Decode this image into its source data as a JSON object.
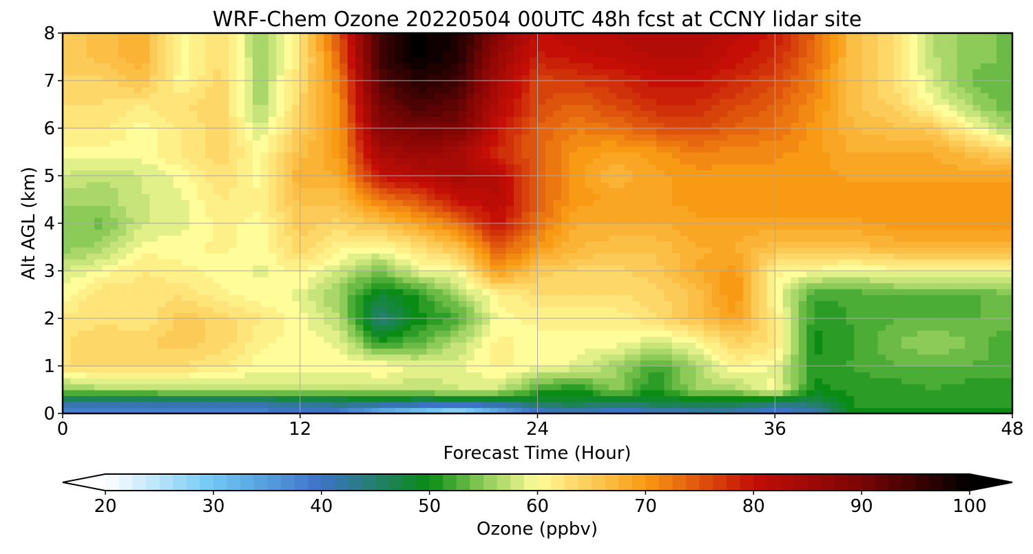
{
  "chart_data": {
    "type": "heatmap",
    "title": "WRF-Chem Ozone  20220504 00UTC 48h fcst at CCNY lidar site",
    "xlabel": "Forecast Time (Hour)",
    "ylabel": "Alt AGL (km)",
    "xlim": [
      0,
      48
    ],
    "ylim": [
      0,
      8
    ],
    "xticks": [
      "0",
      "12",
      "24",
      "36",
      "48"
    ],
    "yticks": [
      "0",
      "1",
      "2",
      "3",
      "4",
      "5",
      "6",
      "7",
      "8"
    ],
    "grid": true,
    "x_hours": [
      0,
      2,
      4,
      6,
      8,
      10,
      12,
      14,
      16,
      18,
      20,
      22,
      24,
      26,
      28,
      30,
      32,
      34,
      36,
      38,
      40,
      42,
      44,
      46,
      48
    ],
    "z_km": [
      0,
      0.25,
      0.5,
      1,
      1.5,
      2,
      2.5,
      3,
      3.5,
      4,
      4.5,
      5,
      5.5,
      6,
      6.5,
      7,
      7.5,
      8
    ],
    "values_ppbv": [
      [
        38,
        37,
        38,
        38,
        38,
        38,
        39,
        38,
        30,
        27,
        22,
        30,
        38,
        40,
        37,
        39,
        40,
        40,
        38,
        40,
        50,
        50,
        50,
        50,
        50
      ],
      [
        43,
        43,
        43,
        43,
        43,
        43,
        44,
        45,
        46,
        45,
        45,
        45,
        47,
        48,
        47,
        48,
        48,
        48,
        46,
        46,
        51,
        51,
        51,
        51,
        51
      ],
      [
        55,
        56,
        56,
        57,
        57,
        57,
        57,
        57,
        57,
        57,
        58,
        58,
        52,
        50,
        55,
        50,
        56,
        56,
        60,
        50,
        51,
        51,
        52,
        51,
        51
      ],
      [
        63,
        64,
        64,
        63,
        62,
        60,
        60,
        60,
        61,
        59,
        59,
        61,
        60,
        59,
        56,
        52,
        56,
        61,
        59,
        51,
        52,
        53,
        53,
        53,
        53
      ],
      [
        63,
        64,
        64,
        65,
        64,
        61,
        60,
        59,
        51,
        53,
        57,
        61,
        60,
        60,
        60,
        58,
        60,
        64,
        63,
        50,
        52,
        54,
        56,
        54,
        52
      ],
      [
        62,
        63,
        62,
        65,
        64,
        62,
        60,
        57,
        44,
        50,
        52,
        60,
        61,
        61,
        61,
        63,
        66,
        69,
        62,
        51,
        52,
        53,
        53,
        53,
        54
      ],
      [
        60,
        63,
        62,
        63,
        61,
        60,
        59,
        55,
        48,
        51,
        56,
        61,
        63,
        63,
        63,
        64,
        66,
        71,
        60,
        52,
        52,
        53,
        53,
        53,
        54
      ],
      [
        58,
        60,
        62,
        61,
        60,
        59,
        61,
        58,
        54,
        59,
        60,
        70,
        65,
        64,
        64,
        65,
        68,
        70,
        61,
        60,
        59,
        60,
        60,
        60,
        60
      ],
      [
        55,
        56,
        60,
        60,
        61,
        60,
        64,
        61,
        60,
        63,
        66,
        75,
        70,
        67,
        66,
        66,
        68,
        68,
        66,
        66,
        66,
        67,
        67,
        67,
        67
      ],
      [
        55,
        54,
        58,
        59,
        61,
        60,
        65,
        64,
        66,
        69,
        73,
        80,
        73,
        68,
        68,
        68,
        69,
        69,
        69,
        69,
        69,
        70,
        70,
        70,
        70
      ],
      [
        56,
        56,
        58,
        59,
        62,
        61,
        66,
        66,
        72,
        75,
        80,
        82,
        74,
        70,
        69,
        69,
        70,
        70,
        70,
        70,
        70,
        70,
        70,
        70,
        70
      ],
      [
        58,
        57,
        58,
        60,
        63,
        60,
        68,
        68,
        80,
        82,
        84,
        82,
        74,
        70,
        67,
        69,
        70,
        70,
        70,
        70,
        69,
        69,
        69,
        69,
        69
      ],
      [
        60,
        60,
        60,
        62,
        64,
        60,
        66,
        70,
        84,
        86,
        84,
        78,
        74,
        70,
        69,
        70,
        72,
        71,
        71,
        70,
        68,
        68,
        68,
        66,
        64
      ],
      [
        62,
        62,
        60,
        62,
        64,
        58,
        65,
        70,
        88,
        90,
        90,
        80,
        74,
        72,
        73,
        75,
        76,
        74,
        73,
        70,
        67,
        66,
        65,
        60,
        56
      ],
      [
        63,
        63,
        62,
        63,
        64,
        56,
        64,
        71,
        90,
        94,
        92,
        82,
        76,
        74,
        76,
        78,
        78,
        76,
        74,
        71,
        66,
        64,
        60,
        56,
        53
      ],
      [
        64,
        64,
        66,
        60,
        64,
        56,
        63,
        72,
        93,
        97,
        95,
        84,
        76,
        77,
        78,
        80,
        80,
        78,
        76,
        72,
        66,
        63,
        58,
        54,
        53
      ],
      [
        65,
        66,
        68,
        60,
        63,
        56,
        62,
        74,
        95,
        100,
        97,
        86,
        79,
        80,
        81,
        82,
        82,
        80,
        78,
        73,
        66,
        63,
        57,
        55,
        54
      ],
      [
        65,
        66,
        68,
        60,
        63,
        56,
        62,
        75,
        95,
        100,
        98,
        88,
        80,
        82,
        82,
        83,
        83,
        81,
        79,
        74,
        66,
        63,
        57,
        55,
        54
      ]
    ],
    "colorbar": {
      "label": "Ozone  (ppbv)",
      "min": 20,
      "max": 100,
      "ticks": [
        "20",
        "30",
        "40",
        "50",
        "60",
        "70",
        "80",
        "90",
        "100"
      ],
      "extend": "both",
      "stops": [
        [
          20,
          "#ffffff"
        ],
        [
          30,
          "#6fc8f4"
        ],
        [
          40,
          "#3d72c6"
        ],
        [
          50,
          "#0a8c14"
        ],
        [
          55,
          "#8ccb58"
        ],
        [
          60,
          "#fffc9a"
        ],
        [
          70,
          "#f99a14"
        ],
        [
          80,
          "#c40e06"
        ],
        [
          90,
          "#7a0505"
        ],
        [
          100,
          "#000000"
        ]
      ]
    }
  }
}
